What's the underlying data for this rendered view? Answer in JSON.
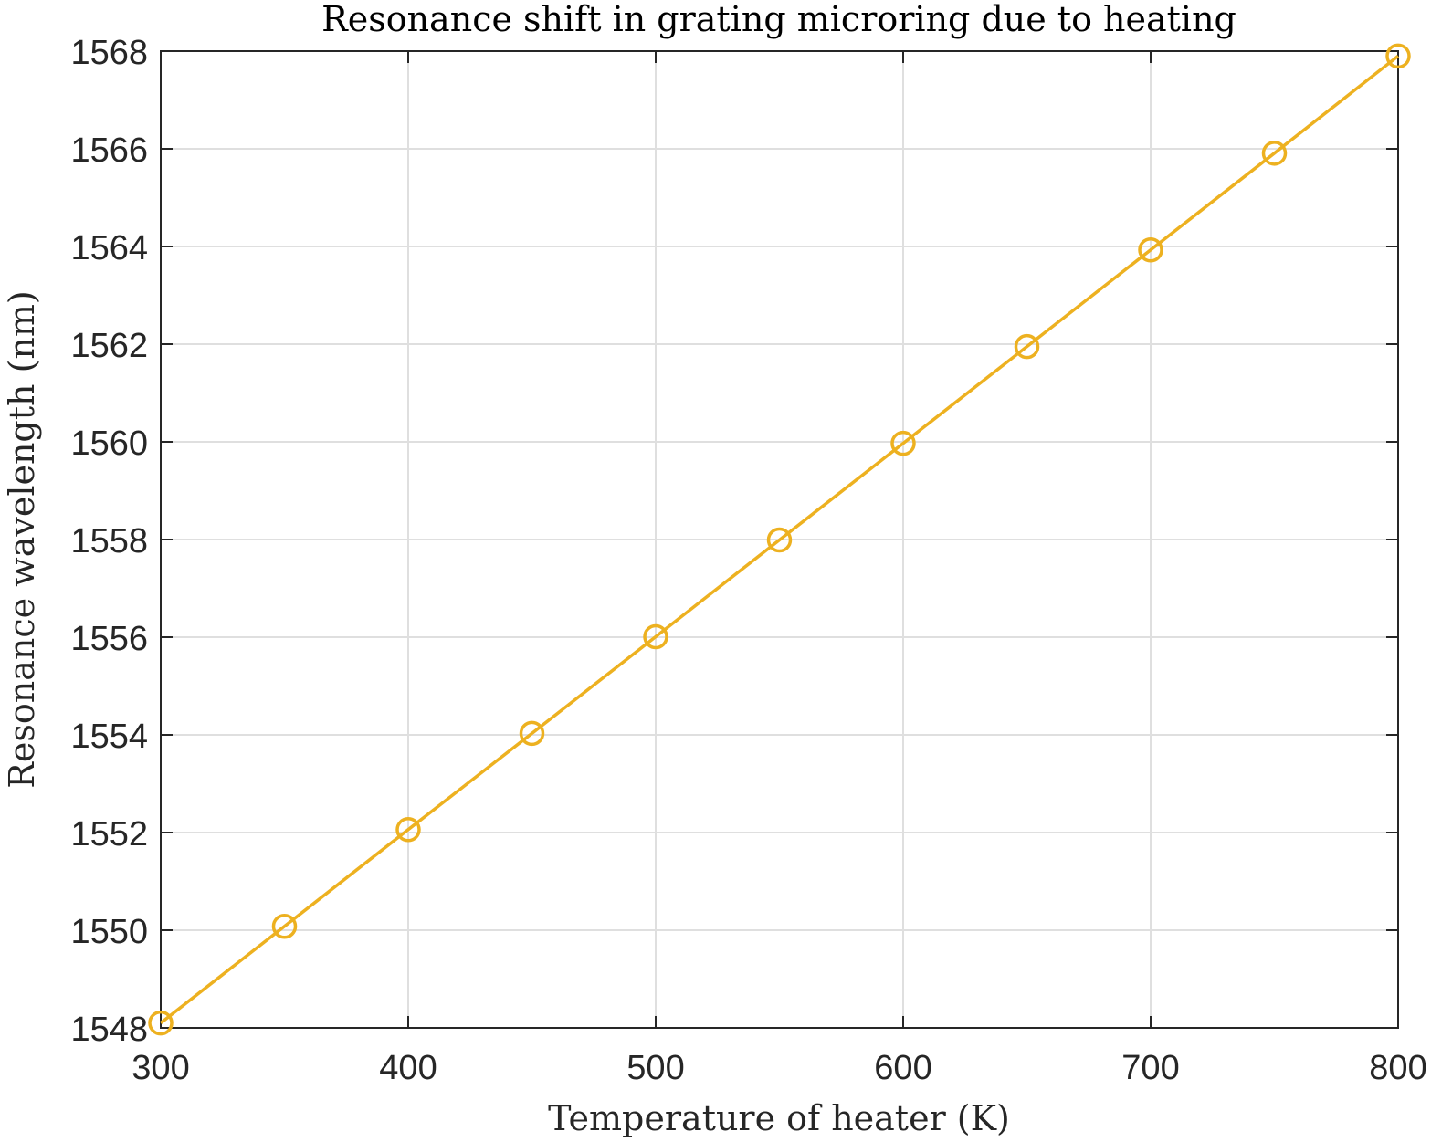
{
  "chart_data": {
    "type": "line",
    "title": "Resonance shift in grating microring due to heating",
    "xlabel": "Temperature of heater (K)",
    "ylabel": "Resonance wavelength (nm)",
    "xlim": [
      300,
      800
    ],
    "ylim": [
      1548,
      1568
    ],
    "x_ticks": [
      300,
      400,
      500,
      600,
      700,
      800
    ],
    "y_ticks": [
      1548,
      1550,
      1552,
      1554,
      1556,
      1558,
      1560,
      1562,
      1564,
      1566,
      1568
    ],
    "grid": true,
    "legend": "none",
    "series": [
      {
        "color": "#EDB120",
        "marker": "circle",
        "x": [
          300,
          350,
          400,
          450,
          500,
          550,
          600,
          650,
          700,
          750,
          800
        ],
        "y": [
          1548.1,
          1550.08,
          1552.06,
          1554.03,
          1556.01,
          1557.99,
          1559.97,
          1561.95,
          1563.93,
          1565.91,
          1567.9
        ]
      }
    ]
  }
}
